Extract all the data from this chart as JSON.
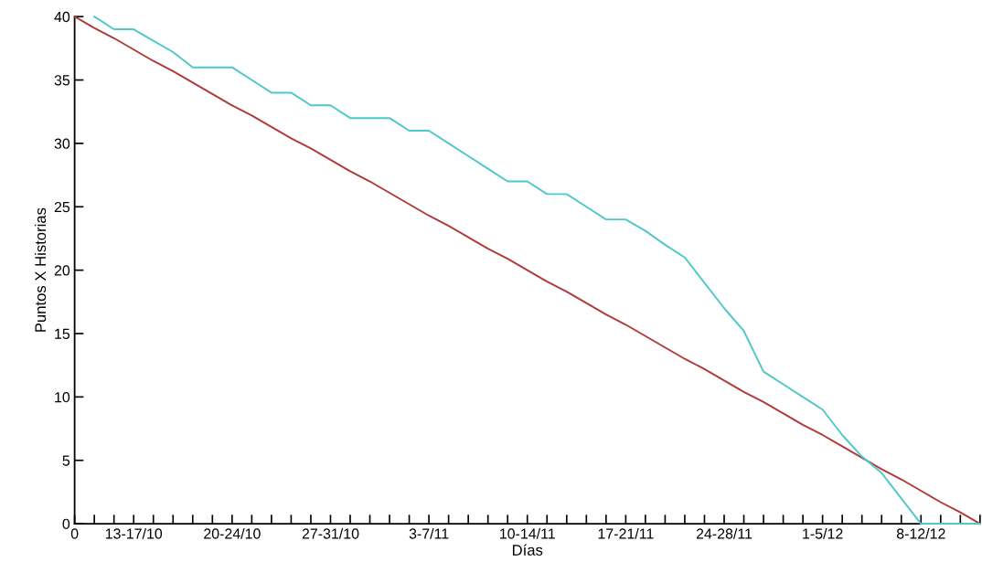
{
  "chart_data": {
    "type": "line",
    "xlabel": "Días",
    "ylabel": "Puntos X Historias",
    "ylim": [
      0,
      40
    ],
    "yticks": [
      0,
      5,
      10,
      15,
      20,
      25,
      30,
      35,
      40
    ],
    "categories": [
      "0",
      null,
      null,
      "13-17/10",
      null,
      null,
      null,
      null,
      "20-24/10",
      null,
      null,
      null,
      null,
      "27-31/10",
      null,
      null,
      null,
      null,
      "3-7/11",
      null,
      null,
      null,
      null,
      "10-14/11",
      null,
      null,
      null,
      null,
      "17-21/11",
      null,
      null,
      null,
      null,
      "24-28/11",
      null,
      null,
      null,
      null,
      "1-5/12",
      null,
      null,
      null,
      null,
      "8-12/12",
      null,
      null,
      null
    ],
    "grid": false,
    "marker": "none",
    "line_style": "solid",
    "series": [
      {
        "color": "#b03a3a",
        "values": [
          40,
          39.1,
          38.3,
          37.4,
          36.5,
          35.7,
          34.8,
          33.9,
          33.0,
          32.2,
          31.3,
          30.4,
          29.6,
          28.7,
          27.8,
          27.0,
          26.1,
          25.2,
          24.3,
          23.5,
          22.6,
          21.7,
          20.9,
          20.0,
          19.1,
          18.3,
          17.4,
          16.5,
          15.7,
          14.8,
          13.9,
          13.0,
          12.2,
          11.3,
          10.4,
          9.6,
          8.7,
          7.8,
          7.0,
          6.1,
          5.2,
          4.3,
          3.5,
          2.6,
          1.7,
          0.9,
          0
        ]
      },
      {
        "color": "#4ec8c8",
        "values": [
          null,
          40,
          39,
          39,
          38.1,
          37.2,
          36,
          36,
          36,
          35,
          34,
          34,
          33,
          33,
          32,
          32,
          32,
          31,
          31,
          30,
          29,
          28,
          27,
          27,
          26,
          26,
          25,
          24,
          24,
          23.1,
          22,
          21,
          19,
          17,
          15.2,
          12,
          11,
          10,
          9,
          7,
          5.3,
          4,
          2,
          0,
          0,
          0,
          0
        ]
      }
    ]
  }
}
